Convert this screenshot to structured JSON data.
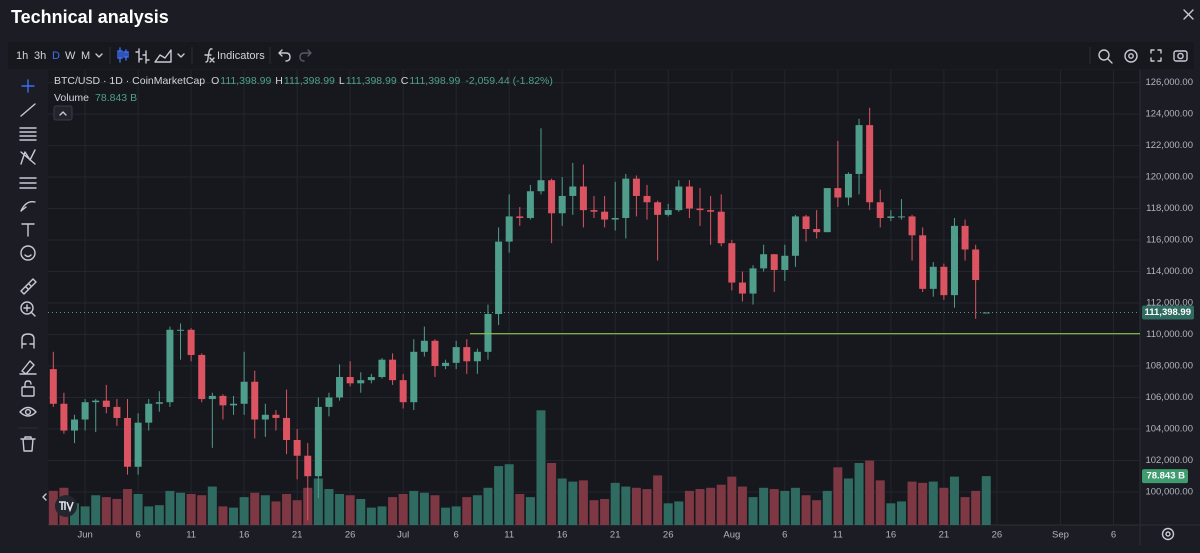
{
  "header": {
    "title": "Technical analysis"
  },
  "toolbar": {
    "intervals": [
      "1h",
      "3h",
      "D",
      "W",
      "M"
    ],
    "indicators": "Indicators"
  },
  "chart_data": {
    "type": "candlestick",
    "title": "BTC/USD · 1D · CoinMarketCap",
    "legend": [
      {
        "key": "O",
        "value": "111,398.99"
      },
      {
        "key": "H",
        "value": "111,398.99"
      },
      {
        "key": "L",
        "value": "111,398.99"
      },
      {
        "key": "C",
        "value": "111,398.99"
      }
    ],
    "change": "-2,059.44 (-1.82%)",
    "up_color": "#4f9e8c",
    "down_color": "#dc5461",
    "volume_up_color": "#2f6b61",
    "volume_down_color": "#7d3844",
    "grid": true,
    "ylim": [
      97900,
      126800
    ],
    "yticks": [
      {
        "value": 100000,
        "label": "100,000.00"
      },
      {
        "value": 102000,
        "label": "102,000.00"
      },
      {
        "value": 104000,
        "label": "104,000.00"
      },
      {
        "value": 106000,
        "label": "106,000.00"
      },
      {
        "value": 108000,
        "label": "108,000.00"
      },
      {
        "value": 110000,
        "label": "110,000.00"
      },
      {
        "value": 112000,
        "label": "112,000.00"
      },
      {
        "value": 114000,
        "label": "114,000.00"
      },
      {
        "value": 116000,
        "label": "116,000.00"
      },
      {
        "value": 118000,
        "label": "118,000.00"
      },
      {
        "value": 120000,
        "label": "120,000.00"
      },
      {
        "value": 122000,
        "label": "122,000.00"
      },
      {
        "value": 124000,
        "label": "124,000.00"
      },
      {
        "value": 126000,
        "label": "126,000.00"
      }
    ],
    "last_price": {
      "value": 111398.99,
      "label": "111,398.99"
    },
    "hline": {
      "value": 110050,
      "color": "#8bc34a"
    },
    "categories": [
      null,
      null,
      null,
      "Jun",
      null,
      null,
      null,
      null,
      "6",
      null,
      null,
      null,
      null,
      "11",
      null,
      null,
      null,
      null,
      "16",
      null,
      null,
      null,
      null,
      "21",
      null,
      null,
      null,
      null,
      "26",
      null,
      null,
      null,
      null,
      "Jul",
      null,
      null,
      null,
      null,
      "6",
      null,
      null,
      null,
      null,
      "11",
      null,
      null,
      null,
      null,
      "16",
      null,
      null,
      null,
      null,
      "21",
      null,
      null,
      null,
      null,
      "26",
      null,
      null,
      null,
      null,
      null,
      "Aug",
      null,
      null,
      null,
      null,
      "6",
      null,
      null,
      null,
      null,
      "11",
      null,
      null,
      null,
      null,
      "16",
      null,
      null,
      null,
      null,
      "21",
      null,
      null,
      null,
      null,
      "26",
      null,
      null,
      null,
      null,
      null,
      "Sep",
      null,
      null,
      null,
      null,
      "6",
      null,
      null
    ],
    "open": [
      107800,
      105600,
      103900,
      104600,
      105700,
      105800,
      105400,
      104700,
      101600,
      104400,
      105600,
      105700,
      110300,
      110300,
      108700,
      105900,
      106100,
      105500,
      105600,
      107000,
      104600,
      104900,
      104700,
      103300,
      102300,
      101000,
      105400,
      106000,
      107300,
      106900,
      107100,
      107300,
      108400,
      107100,
      105700,
      108900,
      109600,
      108000,
      108200,
      109200,
      108300,
      108900,
      111300,
      115900,
      117500,
      117400,
      119100,
      119800,
      117700,
      118800,
      119400,
      117900,
      117800,
      117300,
      117400,
      119900,
      118800,
      118400,
      117600,
      117900,
      119400,
      118000,
      117900,
      117800,
      115800,
      113300,
      112600,
      114200,
      115100,
      114100,
      115000,
      117500,
      116700,
      116500,
      119300,
      118700,
      120200,
      123300,
      118400,
      117400,
      117500,
      117500,
      116300,
      112900,
      114300,
      112500,
      116900,
      115400,
      111398.99,
      null,
      null,
      null,
      null,
      null,
      null,
      null,
      null,
      null,
      null,
      null,
      null,
      null,
      null
    ],
    "high": [
      108900,
      106300,
      104900,
      105900,
      105900,
      106800,
      105900,
      105900,
      105000,
      105900,
      106400,
      110500,
      110700,
      110400,
      108800,
      106300,
      106200,
      106100,
      108900,
      107700,
      105600,
      105200,
      106500,
      104000,
      103100,
      106000,
      106300,
      108100,
      108300,
      107600,
      107500,
      108500,
      108800,
      107500,
      109700,
      110500,
      109700,
      108400,
      109600,
      109700,
      109100,
      111900,
      116800,
      118900,
      118100,
      119500,
      123100,
      119900,
      120000,
      120900,
      120800,
      118800,
      118800,
      119700,
      120200,
      120100,
      119500,
      118500,
      118300,
      119800,
      119800,
      119300,
      118800,
      118900,
      116000,
      114000,
      114400,
      115700,
      115100,
      115700,
      117600,
      117600,
      117900,
      119300,
      122300,
      120300,
      123700,
      124400,
      119200,
      117900,
      118600,
      117600,
      116800,
      114600,
      114500,
      117400,
      117300,
      115700,
      111398.99,
      null,
      null,
      null,
      null,
      null,
      null,
      null,
      null,
      null,
      null,
      null,
      null,
      null,
      null
    ],
    "low": [
      105400,
      103700,
      103100,
      103900,
      103800,
      105000,
      104200,
      101100,
      101100,
      103900,
      105100,
      105400,
      108400,
      108300,
      105700,
      102800,
      104600,
      104900,
      104900,
      103400,
      103500,
      103900,
      102400,
      100800,
      98200,
      99600,
      104800,
      105800,
      106700,
      106300,
      106900,
      107200,
      106800,
      105300,
      105200,
      108600,
      107300,
      107800,
      107800,
      107500,
      107500,
      108400,
      110600,
      115200,
      116900,
      117300,
      118900,
      115800,
      116900,
      117600,
      116800,
      117400,
      116800,
      116600,
      116100,
      117500,
      117300,
      114700,
      117500,
      117800,
      117400,
      116900,
      115700,
      115600,
      112800,
      112100,
      111900,
      114000,
      112700,
      113400,
      114300,
      115900,
      116100,
      116500,
      118100,
      118200,
      118900,
      117900,
      116800,
      117200,
      117300,
      114700,
      112700,
      112400,
      112200,
      111700,
      114700,
      111000,
      111398.99,
      null,
      null,
      null,
      null,
      null,
      null,
      null,
      null,
      null,
      null,
      null,
      null,
      null,
      null
    ],
    "close": [
      105600,
      103900,
      104600,
      105700,
      105800,
      105400,
      104700,
      101600,
      104400,
      105600,
      105700,
      110300,
      110300,
      108700,
      105900,
      106100,
      105500,
      105600,
      107000,
      104600,
      104900,
      104700,
      103300,
      102300,
      101000,
      105400,
      106000,
      107300,
      106900,
      107100,
      107300,
      108400,
      107100,
      105700,
      108900,
      109600,
      108000,
      108200,
      109200,
      108300,
      108900,
      111300,
      115900,
      117500,
      117400,
      119100,
      119800,
      117700,
      118800,
      119400,
      117900,
      117800,
      117300,
      117400,
      119900,
      118800,
      118400,
      117600,
      117900,
      119400,
      118000,
      117900,
      117800,
      115800,
      113300,
      112600,
      114200,
      115100,
      114100,
      115000,
      117500,
      116700,
      116500,
      119300,
      118700,
      120200,
      123300,
      118400,
      117400,
      117500,
      117500,
      116300,
      112900,
      114300,
      112500,
      116900,
      115400,
      113458.43,
      111398.99,
      null,
      null,
      null,
      null,
      null,
      null,
      null,
      null,
      null,
      null,
      null,
      null,
      null,
      null
    ],
    "volume": {
      "name": "Volume",
      "label": "78.843 B",
      "values": [
        55,
        60,
        35,
        30,
        48,
        45,
        42,
        58,
        50,
        30,
        32,
        55,
        52,
        50,
        48,
        62,
        30,
        28,
        45,
        52,
        48,
        38,
        50,
        40,
        60,
        75,
        58,
        50,
        48,
        42,
        28,
        30,
        45,
        50,
        55,
        52,
        48,
        28,
        30,
        45,
        48,
        60,
        95,
        98,
        50,
        45,
        185,
        100,
        75,
        70,
        72,
        40,
        42,
        68,
        62,
        60,
        58,
        80,
        35,
        38,
        55,
        58,
        60,
        65,
        78,
        62,
        45,
        60,
        58,
        55,
        60,
        48,
        40,
        55,
        93,
        75,
        100,
        104,
        72,
        35,
        38,
        70,
        68,
        70,
        60,
        78,
        45,
        55,
        78.843,
        null,
        null,
        null,
        null,
        null,
        null,
        null,
        null,
        null,
        null,
        null,
        null,
        null,
        null
      ]
    }
  }
}
